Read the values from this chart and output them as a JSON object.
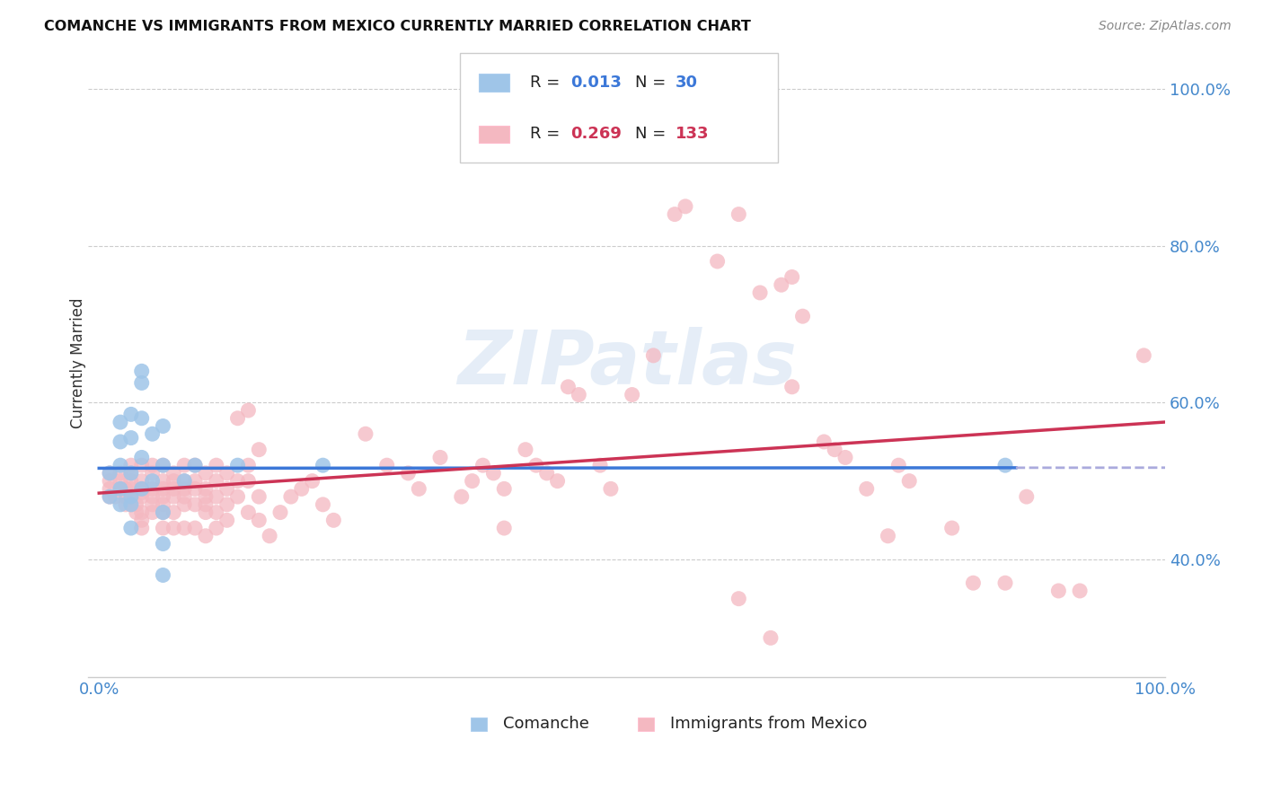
{
  "title": "COMANCHE VS IMMIGRANTS FROM MEXICO CURRENTLY MARRIED CORRELATION CHART",
  "source": "Source: ZipAtlas.com",
  "ylabel": "Currently Married",
  "color_blue": "#9fc5e8",
  "color_pink": "#f4b8c1",
  "color_blue_line": "#3c78d8",
  "color_pink_line": "#cc3355",
  "color_dashed": "#aaaadd",
  "watermark": "ZIPatlas",
  "blue_points": [
    [
      0.01,
      0.51
    ],
    [
      0.01,
      0.48
    ],
    [
      0.02,
      0.52
    ],
    [
      0.02,
      0.575
    ],
    [
      0.02,
      0.55
    ],
    [
      0.02,
      0.49
    ],
    [
      0.02,
      0.47
    ],
    [
      0.03,
      0.585
    ],
    [
      0.03,
      0.555
    ],
    [
      0.03,
      0.51
    ],
    [
      0.03,
      0.48
    ],
    [
      0.03,
      0.47
    ],
    [
      0.03,
      0.44
    ],
    [
      0.04,
      0.64
    ],
    [
      0.04,
      0.625
    ],
    [
      0.04,
      0.58
    ],
    [
      0.04,
      0.53
    ],
    [
      0.04,
      0.49
    ],
    [
      0.05,
      0.56
    ],
    [
      0.05,
      0.5
    ],
    [
      0.06,
      0.57
    ],
    [
      0.06,
      0.52
    ],
    [
      0.06,
      0.46
    ],
    [
      0.06,
      0.42
    ],
    [
      0.06,
      0.38
    ],
    [
      0.08,
      0.5
    ],
    [
      0.09,
      0.52
    ],
    [
      0.13,
      0.52
    ],
    [
      0.21,
      0.52
    ],
    [
      0.85,
      0.52
    ]
  ],
  "pink_points": [
    [
      0.01,
      0.51
    ],
    [
      0.01,
      0.5
    ],
    [
      0.01,
      0.49
    ],
    [
      0.01,
      0.48
    ],
    [
      0.015,
      0.48
    ],
    [
      0.02,
      0.51
    ],
    [
      0.02,
      0.5
    ],
    [
      0.02,
      0.49
    ],
    [
      0.025,
      0.49
    ],
    [
      0.025,
      0.48
    ],
    [
      0.025,
      0.47
    ],
    [
      0.03,
      0.52
    ],
    [
      0.03,
      0.51
    ],
    [
      0.03,
      0.5
    ],
    [
      0.03,
      0.49
    ],
    [
      0.03,
      0.48
    ],
    [
      0.03,
      0.47
    ],
    [
      0.035,
      0.47
    ],
    [
      0.035,
      0.46
    ],
    [
      0.04,
      0.52
    ],
    [
      0.04,
      0.5
    ],
    [
      0.04,
      0.49
    ],
    [
      0.04,
      0.485
    ],
    [
      0.04,
      0.48
    ],
    [
      0.04,
      0.46
    ],
    [
      0.04,
      0.45
    ],
    [
      0.04,
      0.44
    ],
    [
      0.05,
      0.52
    ],
    [
      0.05,
      0.51
    ],
    [
      0.05,
      0.49
    ],
    [
      0.05,
      0.48
    ],
    [
      0.05,
      0.47
    ],
    [
      0.05,
      0.46
    ],
    [
      0.06,
      0.52
    ],
    [
      0.06,
      0.5
    ],
    [
      0.06,
      0.49
    ],
    [
      0.06,
      0.48
    ],
    [
      0.06,
      0.47
    ],
    [
      0.06,
      0.46
    ],
    [
      0.06,
      0.44
    ],
    [
      0.07,
      0.51
    ],
    [
      0.07,
      0.5
    ],
    [
      0.07,
      0.49
    ],
    [
      0.07,
      0.48
    ],
    [
      0.07,
      0.46
    ],
    [
      0.07,
      0.44
    ],
    [
      0.08,
      0.52
    ],
    [
      0.08,
      0.5
    ],
    [
      0.08,
      0.49
    ],
    [
      0.08,
      0.48
    ],
    [
      0.08,
      0.47
    ],
    [
      0.08,
      0.44
    ],
    [
      0.09,
      0.52
    ],
    [
      0.09,
      0.5
    ],
    [
      0.09,
      0.49
    ],
    [
      0.09,
      0.47
    ],
    [
      0.09,
      0.44
    ],
    [
      0.1,
      0.51
    ],
    [
      0.1,
      0.49
    ],
    [
      0.1,
      0.48
    ],
    [
      0.1,
      0.47
    ],
    [
      0.1,
      0.46
    ],
    [
      0.1,
      0.43
    ],
    [
      0.11,
      0.52
    ],
    [
      0.11,
      0.5
    ],
    [
      0.11,
      0.48
    ],
    [
      0.11,
      0.46
    ],
    [
      0.11,
      0.44
    ],
    [
      0.12,
      0.51
    ],
    [
      0.12,
      0.49
    ],
    [
      0.12,
      0.47
    ],
    [
      0.12,
      0.45
    ],
    [
      0.13,
      0.58
    ],
    [
      0.13,
      0.5
    ],
    [
      0.13,
      0.48
    ],
    [
      0.14,
      0.59
    ],
    [
      0.14,
      0.52
    ],
    [
      0.14,
      0.5
    ],
    [
      0.14,
      0.46
    ],
    [
      0.15,
      0.54
    ],
    [
      0.15,
      0.48
    ],
    [
      0.15,
      0.45
    ],
    [
      0.16,
      0.43
    ],
    [
      0.17,
      0.46
    ],
    [
      0.18,
      0.48
    ],
    [
      0.19,
      0.49
    ],
    [
      0.2,
      0.5
    ],
    [
      0.21,
      0.47
    ],
    [
      0.22,
      0.45
    ],
    [
      0.25,
      0.56
    ],
    [
      0.27,
      0.52
    ],
    [
      0.29,
      0.51
    ],
    [
      0.3,
      0.49
    ],
    [
      0.32,
      0.53
    ],
    [
      0.34,
      0.48
    ],
    [
      0.35,
      0.5
    ],
    [
      0.36,
      0.52
    ],
    [
      0.37,
      0.51
    ],
    [
      0.38,
      0.49
    ],
    [
      0.38,
      0.44
    ],
    [
      0.4,
      0.54
    ],
    [
      0.41,
      0.52
    ],
    [
      0.42,
      0.51
    ],
    [
      0.43,
      0.5
    ],
    [
      0.44,
      0.62
    ],
    [
      0.45,
      0.61
    ],
    [
      0.47,
      0.52
    ],
    [
      0.48,
      0.49
    ],
    [
      0.5,
      0.61
    ],
    [
      0.52,
      0.66
    ],
    [
      0.54,
      0.84
    ],
    [
      0.55,
      0.85
    ],
    [
      0.58,
      0.78
    ],
    [
      0.6,
      0.84
    ],
    [
      0.62,
      0.74
    ],
    [
      0.64,
      0.75
    ],
    [
      0.65,
      0.76
    ],
    [
      0.65,
      0.62
    ],
    [
      0.66,
      0.71
    ],
    [
      0.68,
      0.55
    ],
    [
      0.69,
      0.54
    ],
    [
      0.7,
      0.53
    ],
    [
      0.72,
      0.49
    ],
    [
      0.74,
      0.43
    ],
    [
      0.75,
      0.52
    ],
    [
      0.76,
      0.5
    ],
    [
      0.8,
      0.44
    ],
    [
      0.82,
      0.37
    ],
    [
      0.85,
      0.37
    ],
    [
      0.87,
      0.48
    ],
    [
      0.9,
      0.36
    ],
    [
      0.92,
      0.36
    ],
    [
      0.98,
      0.66
    ],
    [
      0.6,
      0.35
    ],
    [
      0.63,
      0.3
    ]
  ]
}
